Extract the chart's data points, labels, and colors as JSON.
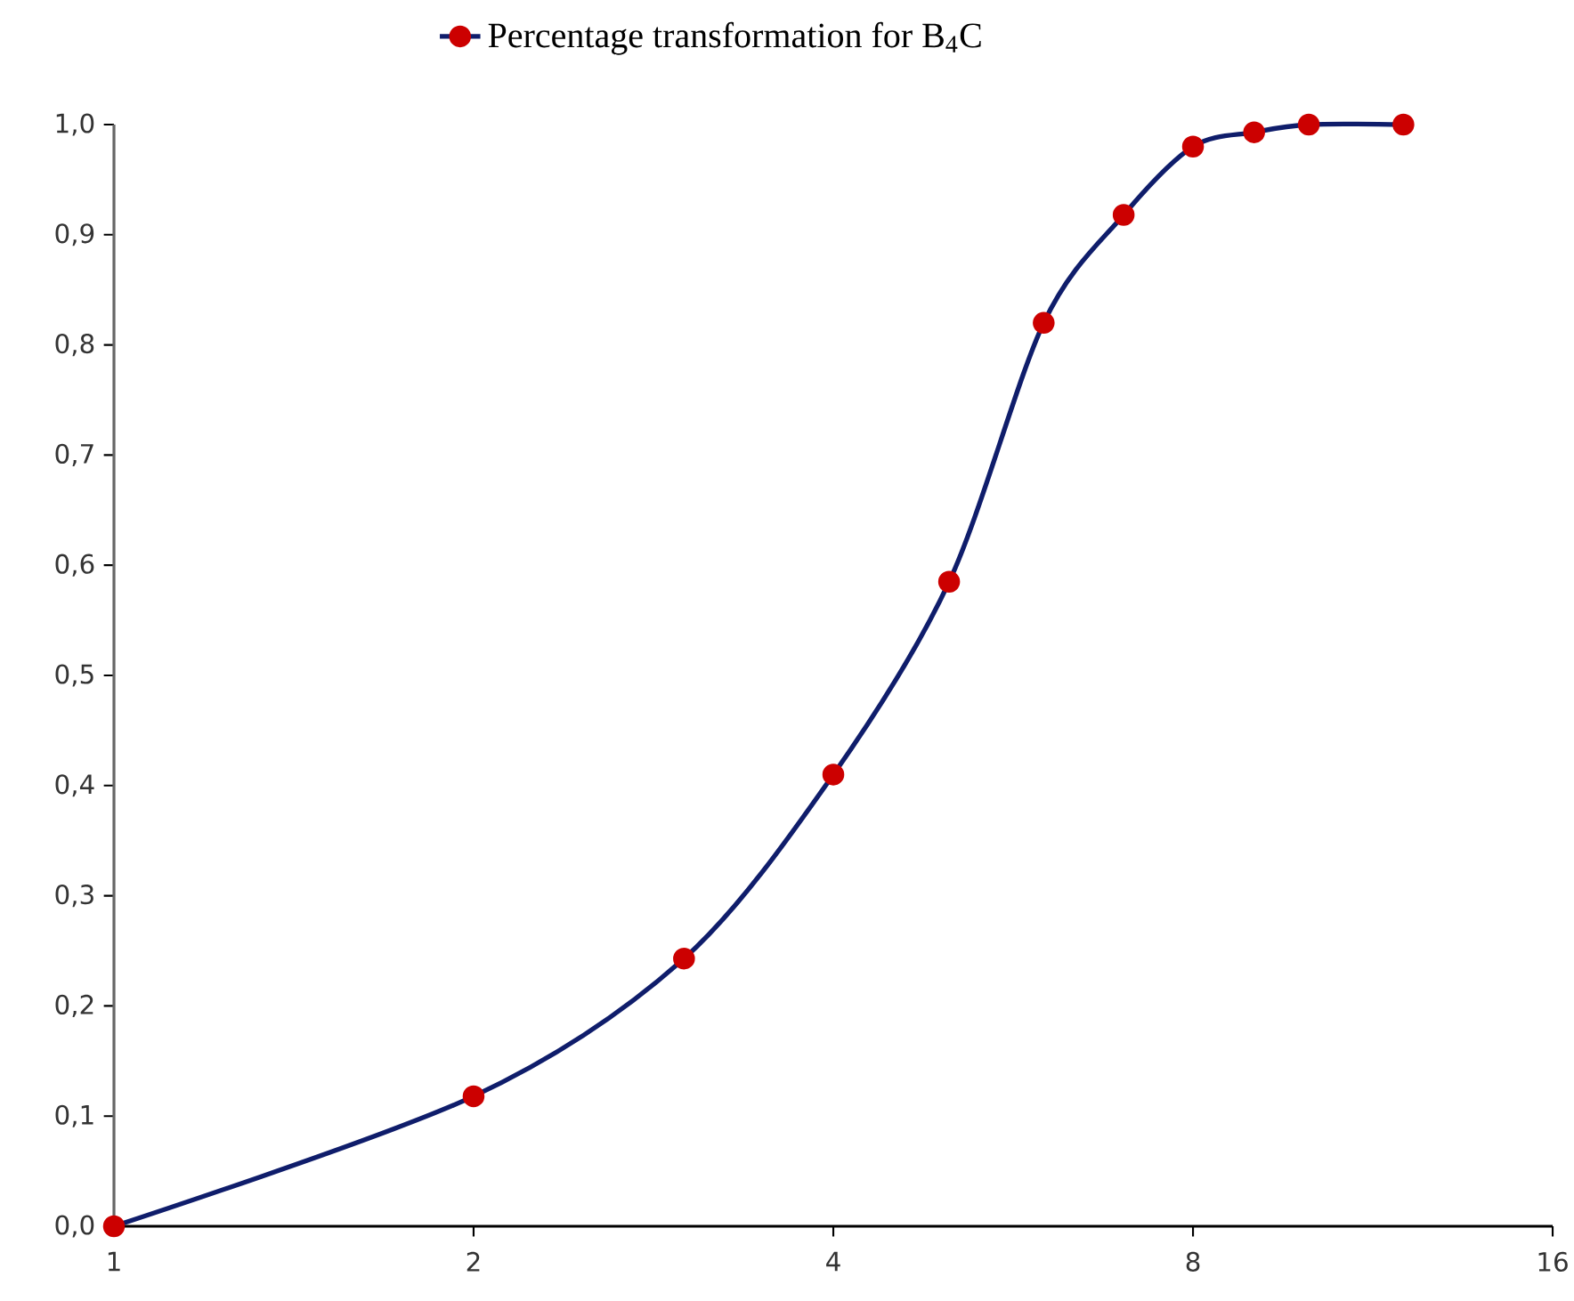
{
  "chart_data": {
    "type": "line",
    "log": "x",
    "xlim": [
      1,
      16
    ],
    "xticks": [
      1,
      2,
      4,
      8,
      16
    ],
    "ylim": [
      0,
      1
    ],
    "yticks": [
      {
        "value": 0,
        "label": "0,0"
      },
      {
        "value": 0.1,
        "label": "0,1"
      },
      {
        "value": 0.2,
        "label": "0,2"
      },
      {
        "value": 0.3,
        "label": "0,3"
      },
      {
        "value": 0.4,
        "label": "0,4"
      },
      {
        "value": 0.5,
        "label": "0,5"
      },
      {
        "value": 0.6,
        "label": "0,6"
      },
      {
        "value": 0.7,
        "label": "0,7"
      },
      {
        "value": 0.8,
        "label": "0,8"
      },
      {
        "value": 0.9,
        "label": "0,9"
      },
      {
        "value": 1,
        "label": "1,0"
      }
    ],
    "x": [
      1,
      2,
      3,
      4,
      5,
      6,
      7,
      8,
      9,
      10,
      12
    ],
    "series": [
      {
        "name": "Percentage transformation for B$_{4}$C",
        "color": "#0f1d6b",
        "values": [
          0,
          0.118,
          0.243,
          0.41,
          0.585,
          0.82,
          0.918,
          0.98,
          0.993,
          1.0,
          1.0
        ]
      }
    ],
    "marker": "circle",
    "line_style": "solid",
    "grid": false,
    "legend": "top"
  }
}
